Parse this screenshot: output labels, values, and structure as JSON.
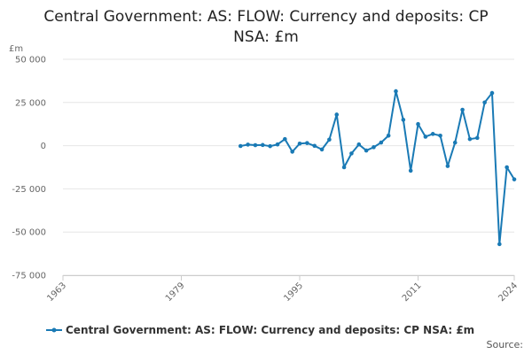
{
  "chart_data": {
    "type": "line",
    "title": "Central Government: AS: FLOW: Currency and deposits: CP NSA: £m",
    "title_lines": [
      "Central Government: AS: FLOW: Currency and deposits: CP",
      "NSA: £m"
    ],
    "unit_label": "£m",
    "ylim": [
      -75000,
      50000
    ],
    "y_ticks": [
      50000,
      25000,
      0,
      -25000,
      -50000,
      -75000
    ],
    "y_tick_labels": [
      "50 000",
      "25 000",
      "0",
      "-25 000",
      "-50 000",
      "-75 000"
    ],
    "xlim": [
      1963,
      2024
    ],
    "x_ticks": [
      1963,
      1979,
      1995,
      2011,
      2024
    ],
    "x_tick_labels": [
      "1963",
      "1979",
      "1995",
      "2011",
      "2024"
    ],
    "grid": true,
    "legend_position": "bottom",
    "color": "#1a7ab5",
    "series": [
      {
        "name": "Central Government: AS: FLOW: Currency and deposits: CP NSA: £m",
        "x": [
          1987,
          1988,
          1989,
          1990,
          1991,
          1992,
          1993,
          1994,
          1995,
          1996,
          1997,
          1998,
          1999,
          2000,
          2001,
          2002,
          2003,
          2004,
          2005,
          2006,
          2007,
          2008,
          2009,
          2010,
          2011,
          2012,
          2013,
          2014,
          2015,
          2016,
          2017,
          2018,
          2019,
          2020,
          2021,
          2022,
          2023,
          2024
        ],
        "values": [
          -200,
          600,
          300,
          400,
          -300,
          700,
          3800,
          -3500,
          1200,
          1500,
          -100,
          -2200,
          3500,
          18000,
          -12500,
          -4500,
          700,
          -2800,
          -900,
          1800,
          5800,
          31500,
          15000,
          -14500,
          12500,
          5200,
          6800,
          5800,
          -11800,
          1800,
          20800,
          3800,
          4500,
          25000,
          30500,
          -57000,
          -12500,
          -19500
        ]
      }
    ]
  },
  "source_label": "Source:"
}
